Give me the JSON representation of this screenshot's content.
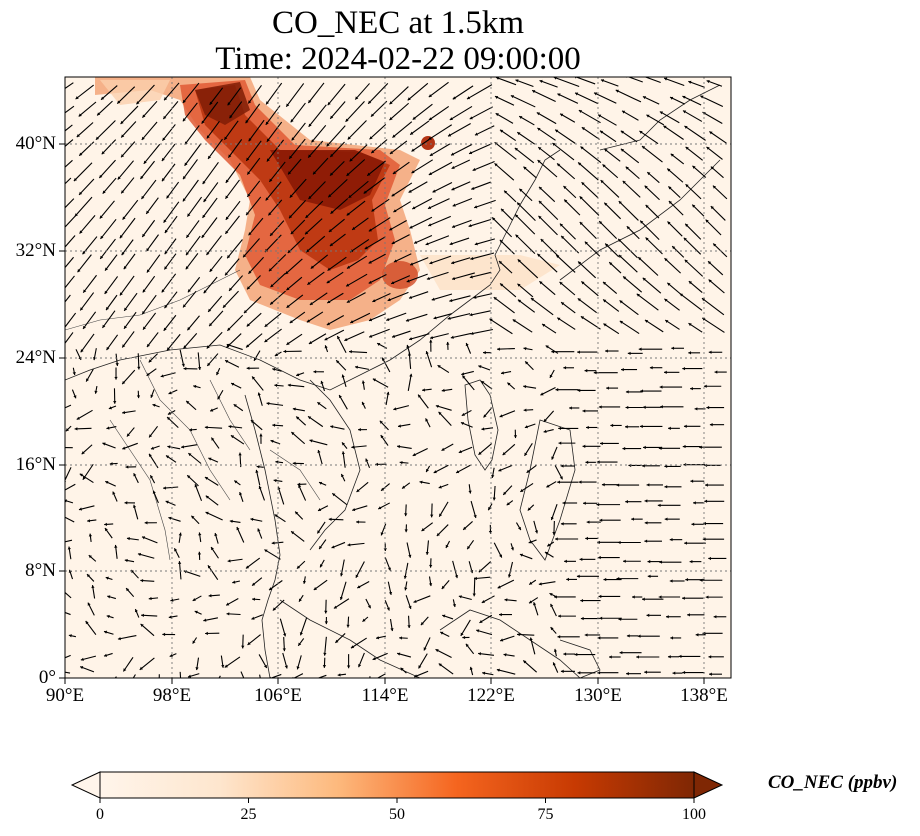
{
  "title": {
    "line1": "CO_NEC at 1.5km",
    "line2": "Time: 2024-02-22 09:00:00"
  },
  "map": {
    "lon_range": [
      90,
      140
    ],
    "lat_range": [
      0,
      45
    ],
    "longitude_ticks": [
      "90°E",
      "98°E",
      "106°E",
      "114°E",
      "122°E",
      "130°E",
      "138°E"
    ],
    "latitude_ticks": [
      "0°",
      "8°N",
      "16°N",
      "24°N",
      "32°N",
      "40°N"
    ],
    "gridlines": "dotted",
    "wind_vectors": "black arrows",
    "field": "CO_NEC concentration shading"
  },
  "colorbar": {
    "label": "CO_NEC (ppbv)",
    "ticks": [
      "0",
      "25",
      "50",
      "75",
      "100"
    ],
    "range": [
      0,
      100
    ],
    "colormap": [
      "#fff5eb",
      "#fdd9b4",
      "#fda762",
      "#f5651f",
      "#c73a02",
      "#7f2704"
    ],
    "extend": "both"
  }
}
